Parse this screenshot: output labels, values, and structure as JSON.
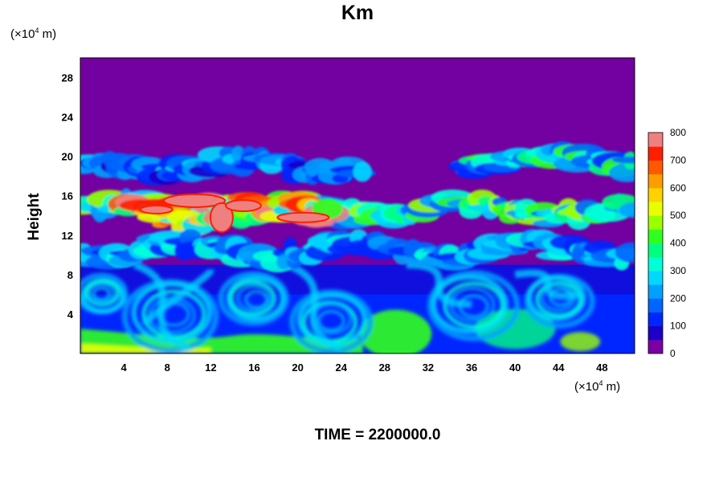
{
  "chart_data": {
    "type": "heatmap",
    "title": "Km",
    "ylabel": "Height",
    "xlabel": "",
    "x_unit_label": "(×10",
    "x_unit_exp": "4",
    "x_unit_suffix": " m)",
    "y_unit_label": "(×10",
    "y_unit_exp": "4",
    "y_unit_suffix": " m)",
    "footer": "TIME = 2200000.0",
    "xlim": [
      0,
      51
    ],
    "ylim": [
      0,
      30
    ],
    "x_ticks": [
      4,
      8,
      12,
      16,
      20,
      24,
      28,
      32,
      36,
      40,
      44,
      48
    ],
    "y_ticks": [
      4,
      8,
      12,
      16,
      20,
      24,
      28
    ],
    "colorbar": {
      "min": 0,
      "max": 800,
      "ticks": [
        0,
        100,
        200,
        300,
        400,
        500,
        600,
        700,
        800
      ],
      "levels": 16
    },
    "field_features": {
      "background_value": 0,
      "turbulent_layer_top": 9,
      "upper_bands": [
        {
          "x_range": [
            0,
            51
          ],
          "y_center": 14.5,
          "value": 450
        },
        {
          "x_range": [
            4,
            23
          ],
          "y_center": 14.5,
          "value": 800
        },
        {
          "x_range": [
            0,
            26
          ],
          "y_center": 19,
          "value": 250
        },
        {
          "x_range": [
            35,
            51
          ],
          "y_center": 19.5,
          "value": 400
        },
        {
          "x_range": [
            0,
            51
          ],
          "y_center": 10.5,
          "value": 300
        }
      ]
    },
    "colors": {
      "background": "#7300a0",
      "palette": [
        "#7a00a5",
        "#1a00c8",
        "#0026ff",
        "#0066ff",
        "#00a0ff",
        "#00d8ff",
        "#00ffd8",
        "#00ff80",
        "#30ff20",
        "#9aff00",
        "#e8ff00",
        "#ffd200",
        "#ff9c00",
        "#ff5a00",
        "#ff1e00",
        "#f08080"
      ]
    }
  }
}
